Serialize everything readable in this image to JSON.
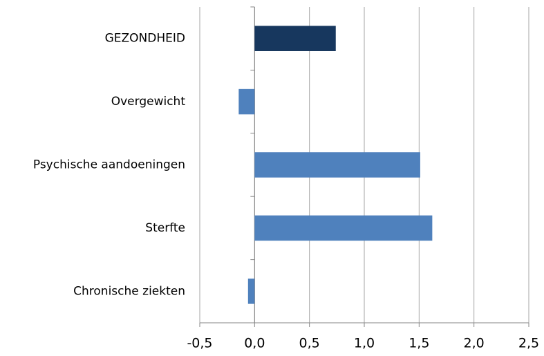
{
  "chart_data": {
    "type": "barh",
    "categories": [
      "GEZONDHEID",
      "Overgewicht",
      "Psychische aandoeningen",
      "Sterfte",
      "Chronische ziekten"
    ],
    "values": [
      0.74,
      -0.145,
      1.51,
      1.62,
      -0.06
    ],
    "colors": [
      "#17375e",
      "#4f81bd",
      "#4f81bd",
      "#4f81bd",
      "#4f81bd"
    ],
    "xlim": [
      -0.5,
      2.5
    ],
    "xticks": [
      {
        "value": -0.5,
        "label": "-0,5"
      },
      {
        "value": 0,
        "label": "0,0"
      },
      {
        "value": 0.5,
        "label": "0,5"
      },
      {
        "value": 1,
        "label": "1,0"
      },
      {
        "value": 1.5,
        "label": "1,5"
      },
      {
        "value": 2,
        "label": "2,0"
      },
      {
        "value": 2.5,
        "label": "2,5"
      }
    ],
    "grid": true
  }
}
